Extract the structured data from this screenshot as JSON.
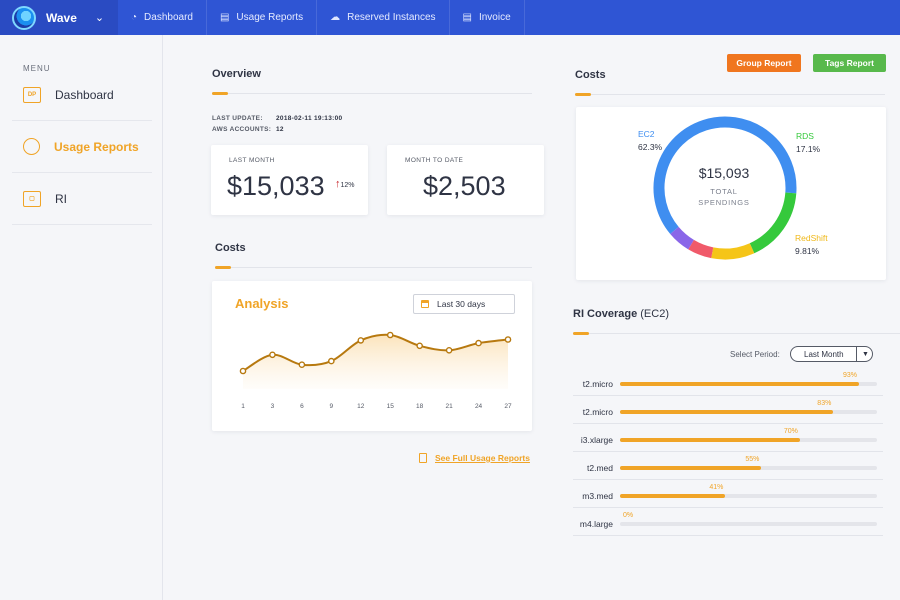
{
  "app": {
    "name": "Wave"
  },
  "nav": {
    "tabs": [
      {
        "label": "Dashboard",
        "icon": "dashboard-icon"
      },
      {
        "label": "Usage Reports",
        "icon": "chart-icon"
      },
      {
        "label": "Reserved Instances",
        "icon": "cloud-icon"
      },
      {
        "label": "Invoice",
        "icon": "document-icon"
      }
    ]
  },
  "sidebar": {
    "menu_label": "MENU",
    "items": [
      {
        "label": "Dashboard",
        "icon_text": "DP",
        "active": false
      },
      {
        "label": "Usage Reports",
        "icon_text": "",
        "active": true
      },
      {
        "label": "RI",
        "icon_text": "",
        "active": false
      }
    ]
  },
  "overview": {
    "title": "Overview",
    "last_update_label": "LAST UPDATE:",
    "last_update_value": "2018-02-11 19:13:00",
    "aws_accounts_label": "AWS ACCOUNTS:",
    "aws_accounts_value": "12",
    "last_month_label": "LAST MONTH",
    "last_month_value": "$15,033",
    "last_month_trend": "12%",
    "month_to_date_label": "MONTH TO DATE",
    "month_to_date_value": "$2,503"
  },
  "costs_left": {
    "title": "Costs"
  },
  "analysis": {
    "title": "Analysis",
    "range_label": "Last 30 days",
    "link_label": "See Full Usage Reports"
  },
  "chart_data": {
    "type": "area",
    "x": [
      1,
      3,
      6,
      9,
      12,
      15,
      18,
      21,
      24,
      27
    ],
    "values": [
      20,
      38,
      27,
      31,
      54,
      60,
      48,
      43,
      51,
      55
    ],
    "ylim": [
      0,
      80
    ],
    "grid": false,
    "color": "#b7790f",
    "fill": "#fdf0dc"
  },
  "actions": {
    "group_report": "Group Report",
    "tags_report": "Tags Report",
    "group_color": "#f0761f",
    "tags_color": "#58b94c"
  },
  "costs_right": {
    "title": "Costs",
    "total": "$15,093",
    "total_label_1": "TOTAL",
    "total_label_2": "SPENDINGS",
    "segments": [
      {
        "name": "EC2",
        "pct": "62.3%",
        "value": 62.3,
        "color": "#3f8ef0"
      },
      {
        "name": "RDS",
        "pct": "17.1%",
        "value": 17.1,
        "color": "#35c93c"
      },
      {
        "name": "RedShift",
        "pct": "9.81%",
        "value": 9.81,
        "color": "#f5c518"
      },
      {
        "name": "",
        "pct": "",
        "value": 5.5,
        "color": "#f05a6a"
      },
      {
        "name": "",
        "pct": "",
        "value": 5.29,
        "color": "#8a66e8"
      }
    ]
  },
  "ri_coverage": {
    "title": "RI Coverage",
    "title_suffix": "(EC2)",
    "period_label": "Select Period:",
    "period_value": "Last Month",
    "rows": [
      {
        "name": "t2.micro",
        "pct": "93%",
        "value": 93
      },
      {
        "name": "t2.micro",
        "pct": "83%",
        "value": 83
      },
      {
        "name": "i3.xlarge",
        "pct": "70%",
        "value": 70
      },
      {
        "name": "t2.med",
        "pct": "55%",
        "value": 55
      },
      {
        "name": "m3.med",
        "pct": "41%",
        "value": 41
      },
      {
        "name": "m4.large",
        "pct": "0%",
        "value": 0
      }
    ]
  }
}
